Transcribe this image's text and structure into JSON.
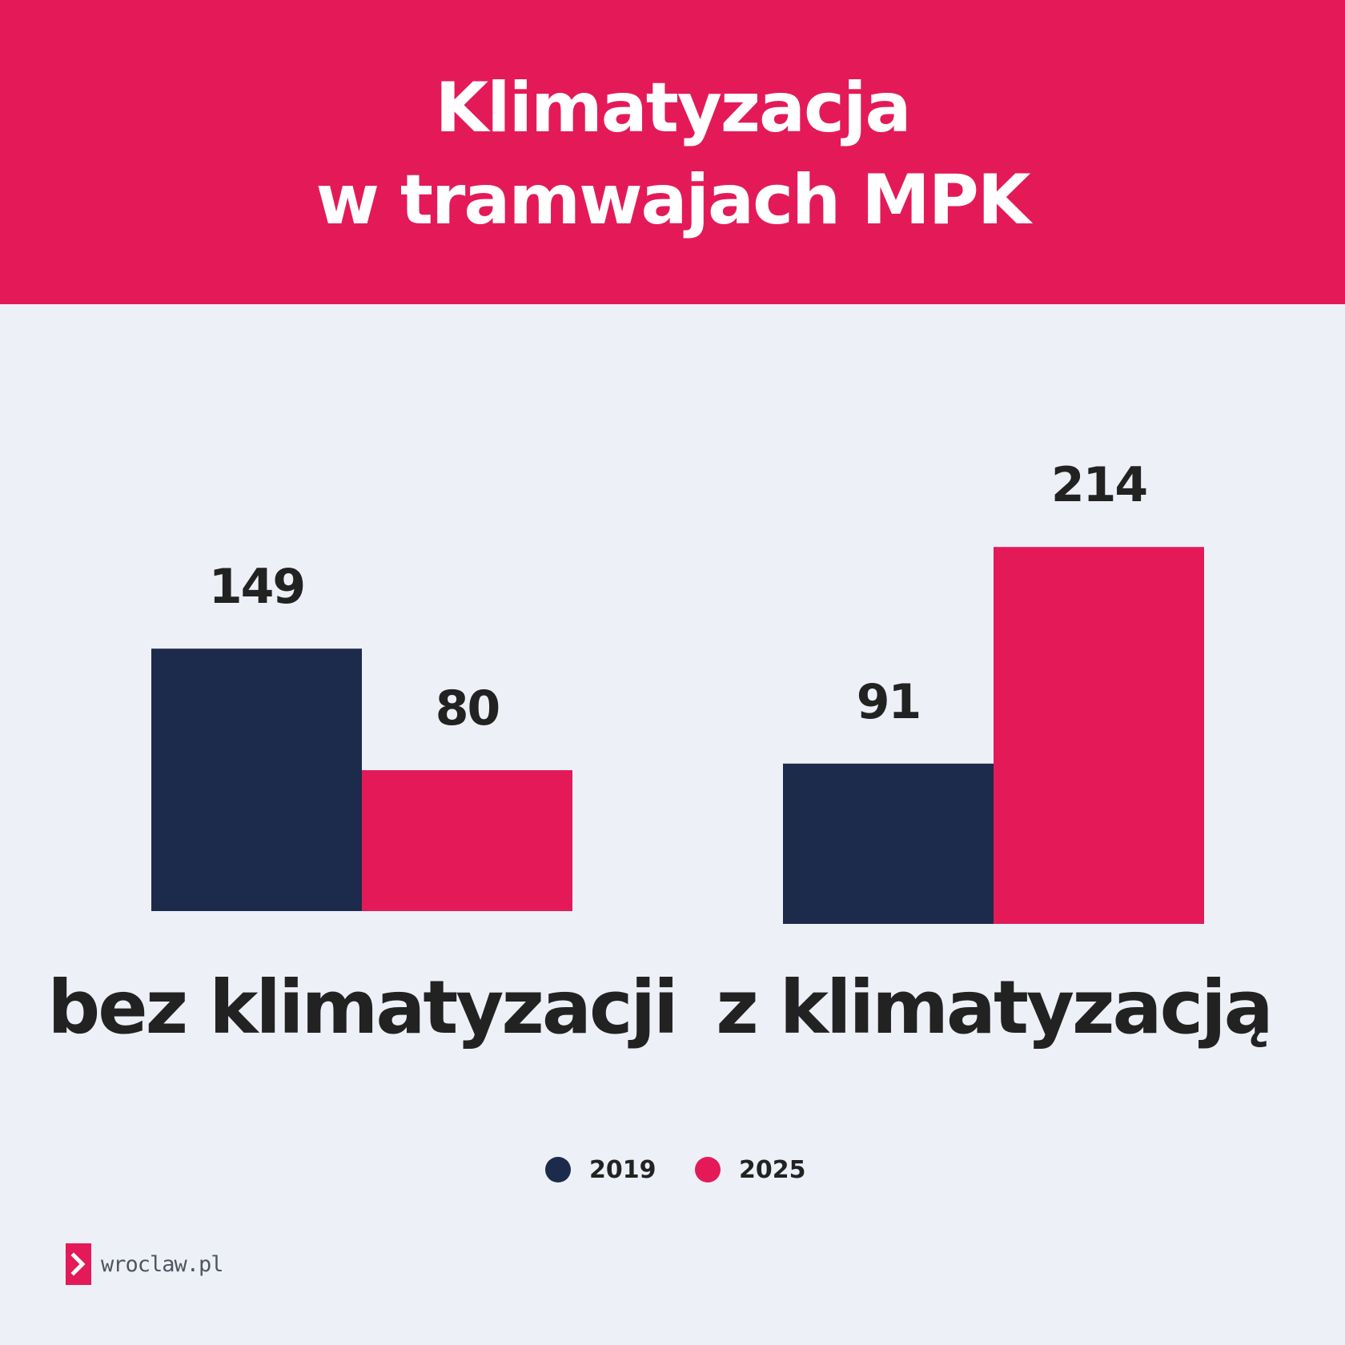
{
  "header": {
    "title_line1": "Klimatyzacja",
    "title_line2": "w tramwajach MPK"
  },
  "colors": {
    "header_bg": "#e41a58",
    "page_bg": "#edf0f7",
    "series_2019": "#1c2a4b",
    "series_2025": "#e41a58",
    "text": "#222222"
  },
  "chart_data": {
    "type": "bar",
    "title": "Klimatyzacja w tramwajach MPK",
    "categories": [
      "bez klimatyzacji",
      "z klimatyzacją"
    ],
    "series": [
      {
        "name": "2019",
        "values": [
          149,
          91
        ],
        "color": "#1c2a4b"
      },
      {
        "name": "2025",
        "values": [
          80,
          214
        ],
        "color": "#e41a58"
      }
    ],
    "xlabel": "",
    "ylabel": "",
    "grid": false,
    "legend": "bottom-center",
    "data_labels": true
  },
  "legend": {
    "items": [
      {
        "label": "2019",
        "color": "#1c2a4b"
      },
      {
        "label": "2025",
        "color": "#e41a58"
      }
    ]
  },
  "brand": {
    "text": "wroclaw.pl",
    "icon": "chevron-right-icon"
  }
}
